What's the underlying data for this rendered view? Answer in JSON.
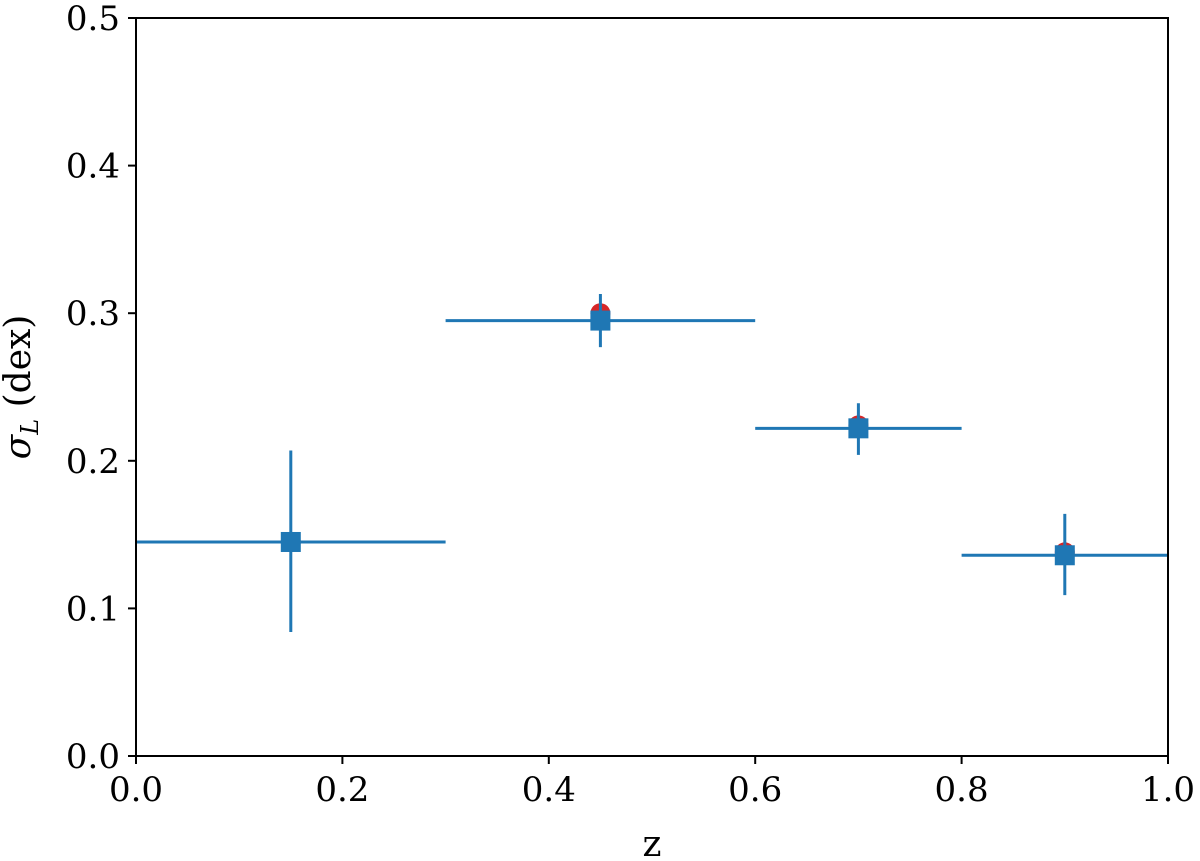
{
  "chart_data": {
    "type": "scatter",
    "xlabel": "z",
    "ylabel_symbol": "σ",
    "ylabel_subscript": "L",
    "ylabel_unit": " (dex)",
    "xlim": [
      0.0,
      1.0
    ],
    "ylim": [
      0.0,
      0.5
    ],
    "xticks": [
      0.0,
      0.2,
      0.4,
      0.6,
      0.8,
      1.0
    ],
    "xtick_labels": [
      "0.0",
      "0.2",
      "0.4",
      "0.6",
      "0.8",
      "1.0"
    ],
    "yticks": [
      0.0,
      0.1,
      0.2,
      0.3,
      0.4,
      0.5
    ],
    "ytick_labels": [
      "0.0",
      "0.1",
      "0.2",
      "0.3",
      "0.4",
      "0.5"
    ],
    "grid": false,
    "series": [
      {
        "marker": "circle",
        "color": "#d62728",
        "x": [
          0.15,
          0.45,
          0.7,
          0.9
        ],
        "y": [
          0.145,
          0.3,
          0.224,
          0.138
        ]
      },
      {
        "marker": "square",
        "color": "#1f77b4",
        "x": [
          0.15,
          0.45,
          0.7,
          0.9
        ],
        "y": [
          0.145,
          0.295,
          0.222,
          0.136
        ],
        "x_lower": [
          0.0,
          0.3,
          0.6,
          0.8
        ],
        "x_upper": [
          0.3,
          0.6,
          0.8,
          1.0
        ],
        "y_lower": [
          0.084,
          0.277,
          0.204,
          0.109
        ],
        "y_upper": [
          0.207,
          0.313,
          0.239,
          0.164
        ]
      }
    ]
  }
}
